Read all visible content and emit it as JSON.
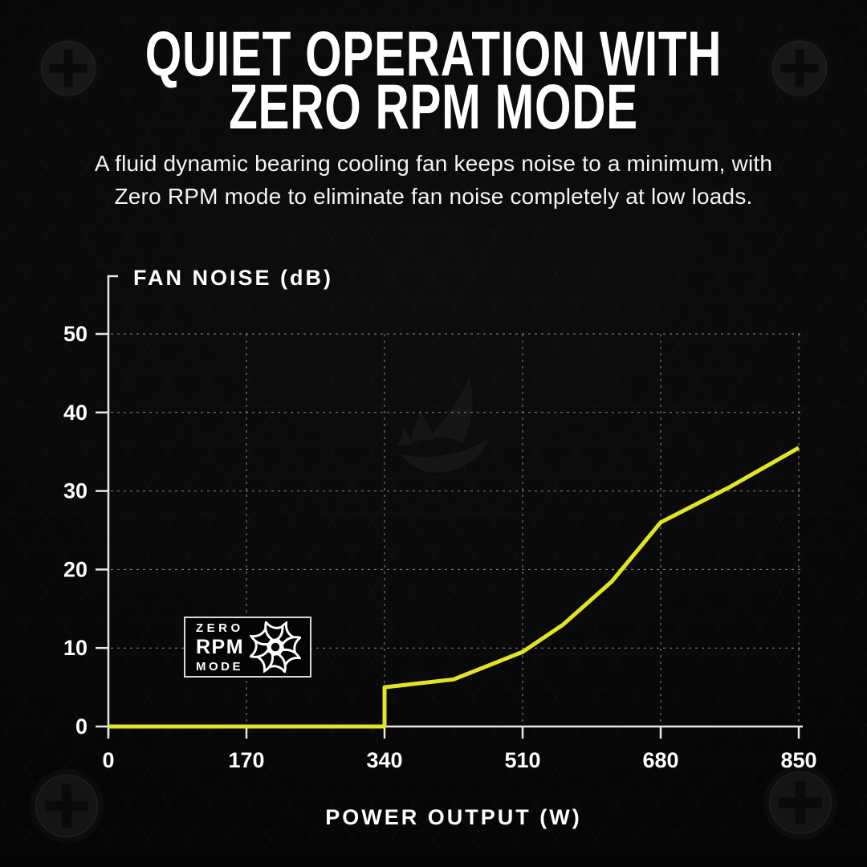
{
  "colors": {
    "accent": "#e2e523",
    "background": "#0a0a0a",
    "axis": "#e8e8e8",
    "grid": "#8d8d8d",
    "text": "#ffffff"
  },
  "header": {
    "title_line1": "QUIET OPERATION WITH",
    "title_line2": "ZERO RPM MODE",
    "subtitle_line1": "A fluid dynamic bearing cooling fan keeps noise to a minimum, with",
    "subtitle_line2": "Zero RPM mode to eliminate fan noise completely at low loads."
  },
  "badge": {
    "line1": "ZERO",
    "line2": "RPM",
    "line3": "MODE",
    "icon": "fan-icon"
  },
  "chart_data": {
    "type": "line",
    "title": "",
    "xlabel": "POWER OUTPUT (W)",
    "ylabel": "FAN NOISE (dB)",
    "x_ticks": [
      0,
      170,
      340,
      510,
      680,
      850
    ],
    "y_ticks": [
      0,
      10,
      20,
      30,
      40,
      50
    ],
    "xlim": [
      0,
      850
    ],
    "ylim": [
      0,
      50
    ],
    "grid": "dashed",
    "legend": "none",
    "series": [
      {
        "name": "Fan noise (dB) vs power output (W)",
        "color": "#e2e523",
        "points": [
          [
            0,
            0
          ],
          [
            340,
            0
          ],
          [
            340,
            5
          ],
          [
            425,
            6
          ],
          [
            510,
            9.5
          ],
          [
            560,
            13
          ],
          [
            620,
            18.5
          ],
          [
            680,
            26
          ],
          [
            765,
            30.5
          ],
          [
            850,
            35.5
          ]
        ]
      }
    ]
  }
}
